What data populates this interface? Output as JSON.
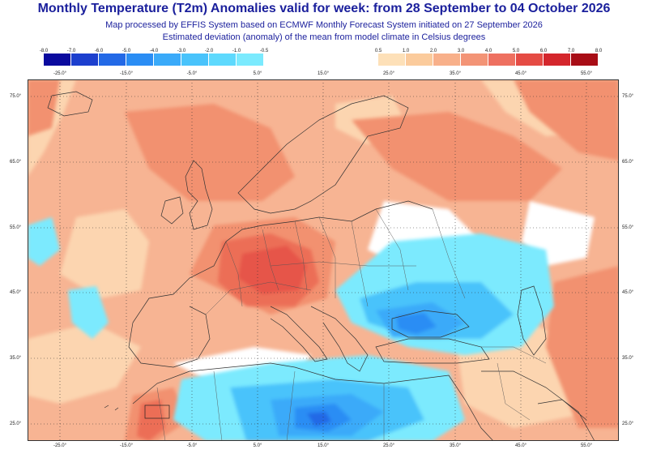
{
  "title": "Monthly Temperature (T2m) Anomalies valid for week: from 28 September to 04 October 2026",
  "subtitle_1": "Map processed by EFFIS System based on ECMWF Monthly Forecast System initiated on 27 September 2026",
  "subtitle_2": "Estimated deviation (anomaly) of the mean from model climate in Celsius degrees",
  "legend_negative": {
    "ticks": [
      "-8.0",
      "-7.0",
      "-6.0",
      "-5.0",
      "-4.0",
      "-3.0",
      "-2.0",
      "-1.0",
      "-0.5"
    ],
    "colors": [
      "#0a0a9e",
      "#1c3fce",
      "#2369e6",
      "#2a8df4",
      "#3aaaf9",
      "#49c3fb",
      "#5ed9fd",
      "#7beafe"
    ]
  },
  "legend_positive": {
    "ticks": [
      "0.5",
      "1.0",
      "2.0",
      "3.0",
      "4.0",
      "5.0",
      "6.0",
      "7.0",
      "8.0"
    ],
    "colors": [
      "#fde0b8",
      "#fbcb9c",
      "#f8b08a",
      "#f39476",
      "#ee7060",
      "#e54b44",
      "#d4262c",
      "#a80d16"
    ]
  },
  "lon_labels": [
    "-25.0°",
    "-15.0°",
    "-5.0°",
    "5.0°",
    "15.0°",
    "25.0°",
    "35.0°",
    "45.0°",
    "55.0°"
  ],
  "lat_labels": [
    "75.0°",
    "65.0°",
    "55.0°",
    "45.0°",
    "35.0°",
    "25.0°"
  ],
  "map_colors": {
    "base": "#f7b493",
    "light": "#fcd5b0",
    "warm": "#f2916f",
    "hot": "#ec6e56",
    "hotter": "#e65548",
    "neutral": "#ffffff",
    "cool1": "#7beafe",
    "cool2": "#49c3fb",
    "cool3": "#3aaaf9",
    "cool4": "#2a8df4",
    "cool5": "#2369e6"
  }
}
